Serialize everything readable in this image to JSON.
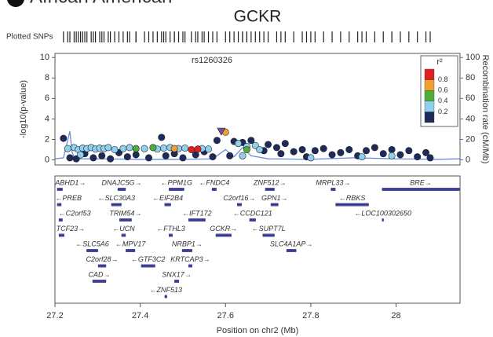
{
  "header": "African American",
  "chart_data": {
    "type": "scatter",
    "title": "GCKR",
    "rug_label": "Plotted SNPs",
    "annotation": "rs1260326",
    "xlabel": "Position on chr2 (Mb)",
    "ylabel": "-log10(p-value)",
    "y2label": "Recombination rate (cM/Mb)",
    "xlim": [
      27.2,
      28.15
    ],
    "xticks": [
      27.2,
      27.4,
      27.6,
      27.8,
      28
    ],
    "ylim": [
      -0.5,
      10.4
    ],
    "yticks": [
      0,
      2,
      4,
      6,
      8,
      10
    ],
    "y2lim": [
      -5,
      104
    ],
    "y2ticks": [
      0,
      20,
      40,
      60,
      80,
      100
    ],
    "axis_color": "#4a6cc4",
    "colorbar": {
      "title": "r²",
      "ticks": [
        0.2,
        0.4,
        0.6,
        0.8
      ],
      "colors": [
        "#1f2a5c",
        "#8fd0ef",
        "#4fae3a",
        "#f2a12e",
        "#e0201e"
      ]
    },
    "lead_snp": {
      "x": 27.59,
      "y": 2.8,
      "color": "#7a4ea3"
    },
    "points": {
      "x": [
        27.23,
        27.245,
        27.255,
        27.265,
        27.275,
        27.285,
        27.295,
        27.305,
        27.315,
        27.325,
        27.34,
        27.36,
        27.375,
        27.41,
        27.44,
        27.455,
        27.47,
        27.49,
        27.505,
        27.545,
        27.56,
        27.63,
        27.65,
        27.67,
        27.68,
        27.64,
        27.26,
        27.8,
        27.92,
        27.99,
        27.22,
        27.235,
        27.25,
        27.27,
        27.29,
        27.31,
        27.33,
        27.35,
        27.37,
        27.39,
        27.42,
        27.45,
        27.46,
        27.48,
        27.5,
        27.53,
        27.55,
        27.57,
        27.58,
        27.61,
        27.62,
        27.64,
        27.66,
        27.69,
        27.7,
        27.72,
        27.73,
        27.74,
        27.76,
        27.78,
        27.79,
        27.81,
        27.83,
        27.85,
        27.87,
        27.89,
        27.91,
        27.93,
        27.95,
        27.97,
        27.99,
        28.01,
        28.03,
        28.05,
        28.07,
        28.08,
        27.39,
        27.43,
        27.65,
        27.48,
        27.6,
        27.52,
        27.535
      ],
      "y": [
        1.1,
        1.2,
        1,
        1.15,
        1.1,
        1.2,
        1.05,
        1.15,
        1.1,
        1.2,
        1,
        1.1,
        1.2,
        1.1,
        1.05,
        1.15,
        1.2,
        1.1,
        1.15,
        1.1,
        1.05,
        1.6,
        1.3,
        1.4,
        1,
        0.4,
        0.5,
        0.2,
        0.3,
        0.4,
        2.1,
        0.2,
        0.1,
        0.6,
        0.2,
        0.4,
        0.1,
        0.7,
        0.3,
        0.5,
        0.2,
        2.2,
        0.4,
        0.6,
        0.2,
        0.5,
        0.8,
        0.3,
        1.9,
        0.4,
        1.8,
        1.7,
        1.9,
        0.9,
        1.5,
        1.2,
        0.6,
        1.6,
        0.8,
        1,
        0.3,
        0.9,
        1.1,
        0.5,
        0.7,
        1,
        0.4,
        0.9,
        1.2,
        0.6,
        1,
        0.5,
        0.9,
        0.3,
        0.7,
        0.2,
        1.1,
        1.2,
        1,
        1.1,
        2.7,
        1,
        1.05
      ],
      "r2": [
        0.3,
        0.3,
        0.3,
        0.3,
        0.3,
        0.3,
        0.3,
        0.3,
        0.3,
        0.3,
        0.3,
        0.3,
        0.3,
        0.3,
        0.3,
        0.3,
        0.3,
        0.3,
        0.3,
        0.3,
        0.3,
        0.3,
        0.3,
        0.3,
        0.3,
        0.3,
        0.3,
        0.3,
        0.3,
        0.3,
        0.1,
        0.1,
        0.1,
        0.1,
        0.1,
        0.1,
        0.1,
        0.1,
        0.1,
        0.1,
        0.1,
        0.1,
        0.1,
        0.1,
        0.1,
        0.1,
        0.1,
        0.1,
        0.1,
        0.1,
        0.1,
        0.1,
        0.1,
        0.1,
        0.1,
        0.1,
        0.1,
        0.1,
        0.1,
        0.1,
        0.1,
        0.1,
        0.1,
        0.1,
        0.1,
        0.1,
        0.1,
        0.1,
        0.1,
        0.1,
        0.1,
        0.1,
        0.1,
        0.1,
        0.1,
        0.1,
        0.5,
        0.5,
        0.5,
        0.7,
        0.7,
        0.9,
        0.9
      ]
    },
    "recombination": {
      "color": "#6f8fd6",
      "x": [
        27.2,
        27.22,
        27.235,
        27.24,
        27.245,
        27.26,
        27.3,
        27.4,
        27.5,
        27.57,
        27.6,
        27.62,
        27.64,
        27.66,
        27.7,
        27.8,
        27.9,
        28.0,
        28.1,
        28.15
      ],
      "y": [
        1,
        2,
        28,
        8,
        2,
        1,
        1,
        0.5,
        0.5,
        1,
        10,
        3,
        12,
        4,
        1,
        0.5,
        2,
        1,
        0.5,
        1
      ]
    },
    "genes": [
      {
        "label": "ABHD1→",
        "start": 27.205,
        "end": 27.218
      },
      {
        "label": "DNAJC5G→",
        "start": 27.347,
        "end": 27.366
      },
      {
        "label": "←PPM1G",
        "start": 27.467,
        "end": 27.503
      },
      {
        "label": "←FNDC4",
        "start": 27.568,
        "end": 27.579
      },
      {
        "label": "ZNF512→",
        "start": 27.693,
        "end": 27.715
      },
      {
        "label": "MRPL33→",
        "start": 27.847,
        "end": 27.858
      },
      {
        "label": "BRE→",
        "start": 27.967,
        "end": 28.149
      },
      {
        "label": "←PREB",
        "start": 27.205,
        "end": 27.215
      },
      {
        "label": "←SLC30A3",
        "start": 27.332,
        "end": 27.356
      },
      {
        "label": "←EIF2B4",
        "start": 27.457,
        "end": 27.472
      },
      {
        "label": "←IFT172",
        "start": 27.513,
        "end": 27.553
      },
      {
        "label": "C2orf16→",
        "start": 27.627,
        "end": 27.638
      },
      {
        "label": "←RBKS",
        "start": 27.858,
        "end": 27.936
      },
      {
        "label": "←C2orf53",
        "start": 27.209,
        "end": 27.218
      },
      {
        "label": "TRIM54→",
        "start": 27.351,
        "end": 27.38
      },
      {
        "label": "←FTHL3",
        "start": 27.467,
        "end": 27.476
      },
      {
        "label": "GCKR→",
        "start": 27.577,
        "end": 27.614
      },
      {
        "label": "←CCDC121",
        "start": 27.656,
        "end": 27.671
      },
      {
        "label": "←LOC100302650",
        "start": 27.967,
        "end": 27.971
      },
      {
        "label": "TCF23→",
        "start": 27.209,
        "end": 27.222
      },
      {
        "label": "←UCN",
        "start": 27.356,
        "end": 27.366
      },
      {
        "label": "NRBP1→",
        "start": 27.498,
        "end": 27.522
      },
      {
        "label": "GPN1→",
        "start": 27.706,
        "end": 27.724
      },
      {
        "label": "←SLC5A6",
        "start": 27.274,
        "end": 27.301
      },
      {
        "label": "←MPV17",
        "start": 27.366,
        "end": 27.388
      },
      {
        "label": "KRTCAP3→",
        "start": 27.513,
        "end": 27.522
      },
      {
        "label": "←SUPT7L",
        "start": 27.687,
        "end": 27.715
      },
      {
        "label": "C2orf28→",
        "start": 27.301,
        "end": 27.32
      },
      {
        "label": "←GTF3C2",
        "start": 27.402,
        "end": 27.435
      },
      {
        "label": "SLC4A1AP→",
        "start": 27.743,
        "end": 27.766
      },
      {
        "label": "CAD→",
        "start": 27.288,
        "end": 27.32
      },
      {
        "label": "SNX17→",
        "start": 27.48,
        "end": 27.491
      },
      {
        "label": "←ZNF513",
        "start": 27.457,
        "end": 27.463
      }
    ]
  }
}
